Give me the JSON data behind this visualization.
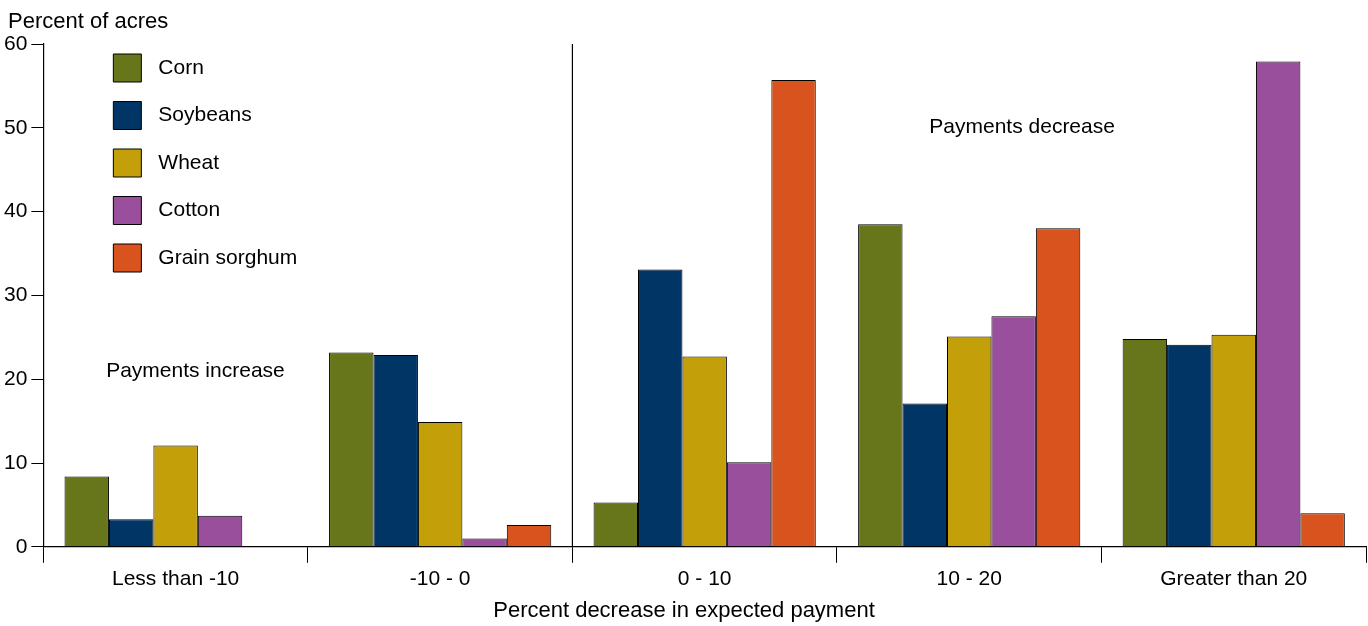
{
  "chart_data": {
    "type": "bar",
    "ylabel": "Percent of acres",
    "xlabel": "Percent decrease in expected payment",
    "categories": [
      "Less than -10",
      "-10 - 0",
      "0 - 10",
      "10 - 20",
      "Greater than 20"
    ],
    "series": [
      {
        "name": "Corn",
        "color": "#67761b",
        "values": [
          8.4,
          23.2,
          5.3,
          38.5,
          24.8
        ]
      },
      {
        "name": "Soybeans",
        "color": "#003566",
        "values": [
          3.3,
          22.9,
          33.1,
          17.1,
          24.1
        ]
      },
      {
        "name": "Wheat",
        "color": "#c3a00a",
        "values": [
          12.1,
          14.9,
          22.7,
          25.1,
          25.3
        ]
      },
      {
        "name": "Cotton",
        "color": "#9a4f9c",
        "values": [
          3.7,
          1.0,
          10.1,
          27.5,
          57.9
        ]
      },
      {
        "name": "Grain sorghum",
        "color": "#d9531e",
        "values": [
          null,
          2.6,
          55.7,
          38.0,
          4.0
        ]
      }
    ],
    "ylim": [
      0,
      60
    ],
    "yticks": [
      0,
      10,
      20,
      30,
      40,
      50,
      60
    ],
    "grid": false,
    "legend": "top left",
    "annotations": [
      "Payments increase",
      "Payments decrease"
    ]
  }
}
